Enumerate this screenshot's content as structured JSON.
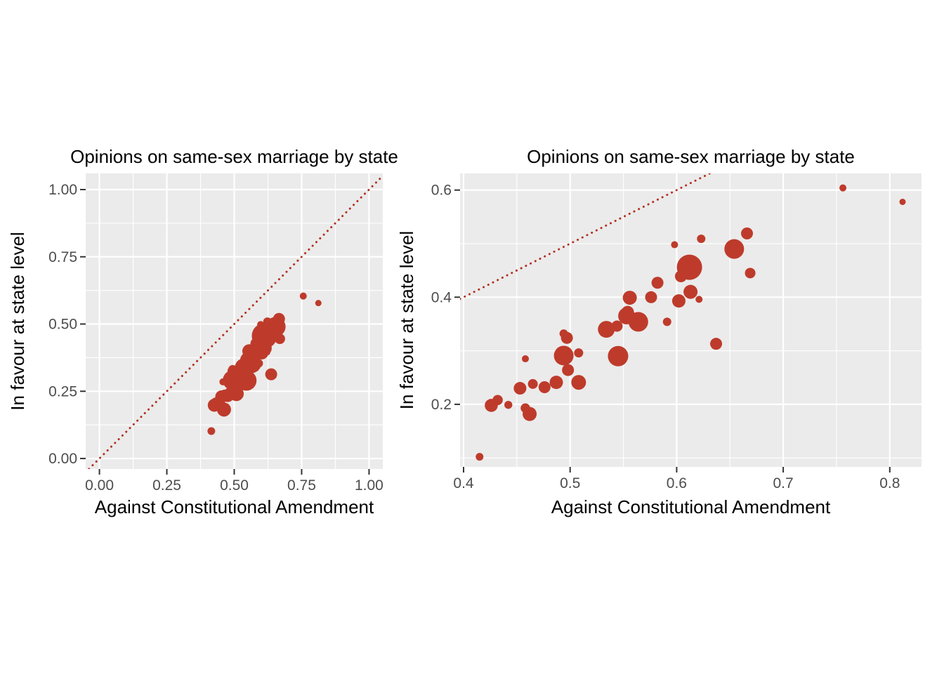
{
  "figure": {
    "description": "Two side-by-side scatter plots of state opinions, right panel is a zoomed view of the left panel"
  },
  "style": {
    "point_color": "#BE3B2B",
    "refline_color": "#B23020",
    "panel_bg": "#EBEBEB",
    "grid_color": "#FFFFFF",
    "tick_label_color": "#4D4D4D",
    "axis_tick_color": "#333333",
    "text_color": "#000000"
  },
  "chart_data": [
    {
      "type": "scatter",
      "title": "Opinions on same-sex marriage by state",
      "xlabel": "Against Constitutional Amendment",
      "ylabel": "In favour at state level",
      "xlim": [
        -0.051,
        1.051
      ],
      "ylim": [
        -0.039,
        1.06
      ],
      "xticks": [
        0,
        0.25,
        0.5,
        0.75,
        1
      ],
      "xtick_labels": [
        "0.00",
        "0.25",
        "0.50",
        "0.75",
        "1.00"
      ],
      "yticks": [
        0,
        0.25,
        0.5,
        0.75,
        1
      ],
      "ytick_labels": [
        "0.00",
        "0.25",
        "0.50",
        "0.75",
        "1.00"
      ],
      "xminor": [
        0.125,
        0.375,
        0.625,
        0.875
      ],
      "yminor": [
        0.125,
        0.375,
        0.625,
        0.875
      ],
      "grid": "on",
      "legend": "none",
      "refline": {
        "kind": "identity y=x",
        "style": "dotted"
      },
      "points_format": [
        "x_against_amendment",
        "y_in_favour",
        "radius_px"
      ],
      "points": [
        [
          0.415,
          0.102,
          5.5
        ],
        [
          0.426,
          0.198,
          9.3
        ],
        [
          0.432,
          0.208,
          7.3
        ],
        [
          0.442,
          0.199,
          5.7
        ],
        [
          0.453,
          0.23,
          9.0
        ],
        [
          0.458,
          0.193,
          6.7
        ],
        [
          0.462,
          0.182,
          10.0
        ],
        [
          0.465,
          0.238,
          7.0
        ],
        [
          0.476,
          0.232,
          8.5
        ],
        [
          0.487,
          0.241,
          9.5
        ],
        [
          0.458,
          0.285,
          5.0
        ],
        [
          0.494,
          0.291,
          14.0
        ],
        [
          0.497,
          0.324,
          8.5
        ],
        [
          0.494,
          0.332,
          6.0
        ],
        [
          0.508,
          0.296,
          6.5
        ],
        [
          0.498,
          0.264,
          8.5
        ],
        [
          0.508,
          0.241,
          10.5
        ],
        [
          0.534,
          0.34,
          12.0
        ],
        [
          0.544,
          0.346,
          8.0
        ],
        [
          0.545,
          0.29,
          14.5
        ],
        [
          0.553,
          0.365,
          12.0
        ],
        [
          0.564,
          0.354,
          14.0
        ],
        [
          0.554,
          0.372,
          9.0
        ],
        [
          0.556,
          0.399,
          10.0
        ],
        [
          0.576,
          0.4,
          8.5
        ],
        [
          0.582,
          0.427,
          8.5
        ],
        [
          0.591,
          0.354,
          6.0
        ],
        [
          0.598,
          0.498,
          5.0
        ],
        [
          0.602,
          0.393,
          9.5
        ],
        [
          0.604,
          0.439,
          8.5
        ],
        [
          0.612,
          0.456,
          18.0
        ],
        [
          0.613,
          0.41,
          10.0
        ],
        [
          0.621,
          0.396,
          5.0
        ],
        [
          0.623,
          0.509,
          6.0
        ],
        [
          0.637,
          0.313,
          8.5
        ],
        [
          0.654,
          0.49,
          14.0
        ],
        [
          0.666,
          0.519,
          8.5
        ],
        [
          0.669,
          0.445,
          7.5
        ],
        [
          0.756,
          0.604,
          5.0
        ],
        [
          0.812,
          0.578,
          4.5
        ]
      ]
    },
    {
      "type": "scatter",
      "title": "Opinions on same-sex marriage by state",
      "xlabel": "Against Constitutional Amendment",
      "ylabel": "In favour at state level",
      "xlim": [
        0.3967,
        0.8298
      ],
      "ylim": [
        0.0832,
        0.6311
      ],
      "xticks": [
        0.4,
        0.5,
        0.6,
        0.7,
        0.8
      ],
      "xtick_labels": [
        "0.4",
        "0.5",
        "0.6",
        "0.7",
        "0.8"
      ],
      "yticks": [
        0.2,
        0.4,
        0.6
      ],
      "ytick_labels": [
        "0.2",
        "0.4",
        "0.6"
      ],
      "xminor": [
        0.45,
        0.55,
        0.65,
        0.75
      ],
      "yminor": [
        0.1,
        0.3,
        0.5
      ],
      "grid": "on",
      "legend": "none",
      "refline": {
        "kind": "identity y=x",
        "style": "dotted"
      },
      "points_format": [
        "x_against_amendment",
        "y_in_favour",
        "radius_px"
      ],
      "points": [
        [
          0.415,
          0.102,
          5.5
        ],
        [
          0.426,
          0.198,
          9.3
        ],
        [
          0.432,
          0.208,
          7.3
        ],
        [
          0.442,
          0.199,
          5.7
        ],
        [
          0.453,
          0.23,
          9.0
        ],
        [
          0.458,
          0.193,
          6.7
        ],
        [
          0.462,
          0.182,
          10.0
        ],
        [
          0.465,
          0.238,
          7.0
        ],
        [
          0.476,
          0.232,
          8.5
        ],
        [
          0.487,
          0.241,
          9.5
        ],
        [
          0.458,
          0.285,
          5.0
        ],
        [
          0.494,
          0.291,
          14.0
        ],
        [
          0.497,
          0.324,
          8.5
        ],
        [
          0.494,
          0.332,
          6.0
        ],
        [
          0.508,
          0.296,
          6.5
        ],
        [
          0.498,
          0.264,
          8.5
        ],
        [
          0.508,
          0.241,
          10.5
        ],
        [
          0.534,
          0.34,
          12.0
        ],
        [
          0.544,
          0.346,
          8.0
        ],
        [
          0.545,
          0.29,
          14.5
        ],
        [
          0.553,
          0.365,
          12.0
        ],
        [
          0.564,
          0.354,
          14.0
        ],
        [
          0.554,
          0.372,
          9.0
        ],
        [
          0.556,
          0.399,
          10.0
        ],
        [
          0.576,
          0.4,
          8.5
        ],
        [
          0.582,
          0.427,
          8.5
        ],
        [
          0.591,
          0.354,
          6.0
        ],
        [
          0.598,
          0.498,
          5.0
        ],
        [
          0.602,
          0.393,
          9.5
        ],
        [
          0.604,
          0.439,
          8.5
        ],
        [
          0.612,
          0.456,
          18.0
        ],
        [
          0.613,
          0.41,
          10.0
        ],
        [
          0.621,
          0.396,
          5.0
        ],
        [
          0.623,
          0.509,
          6.0
        ],
        [
          0.637,
          0.313,
          8.5
        ],
        [
          0.654,
          0.49,
          14.0
        ],
        [
          0.666,
          0.519,
          8.5
        ],
        [
          0.669,
          0.445,
          7.5
        ],
        [
          0.756,
          0.604,
          5.0
        ],
        [
          0.812,
          0.578,
          4.5
        ]
      ]
    }
  ]
}
